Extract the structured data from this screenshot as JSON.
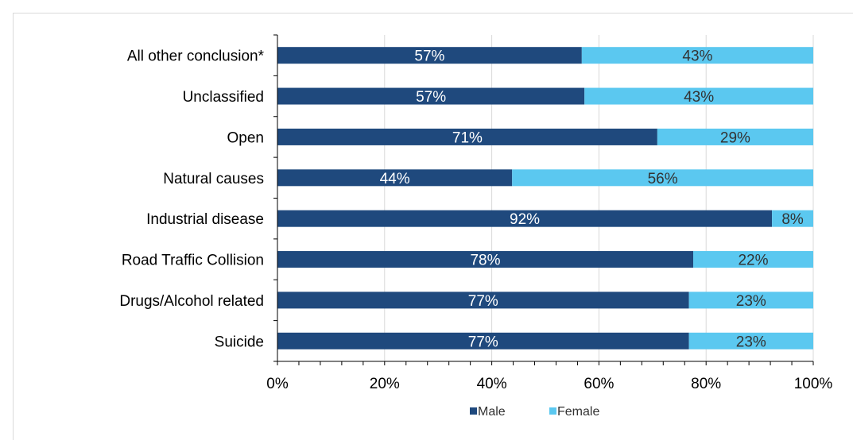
{
  "chart_data": {
    "type": "bar",
    "orientation": "horizontal",
    "stacked": true,
    "categories": [
      "All other conclusion*",
      "Unclassified",
      "Open",
      "Natural causes",
      "Industrial disease",
      "Road Traffic Collision",
      "Drugs/Alcohol related",
      "Suicide"
    ],
    "series": [
      {
        "name": "Male",
        "color": "#1f497d",
        "values": [
          56.8,
          57.3,
          70.9,
          43.8,
          92.3,
          77.6,
          76.8,
          76.8
        ],
        "labels": [
          "57%",
          "57%",
          "71%",
          "44%",
          "92%",
          "78%",
          "77%",
          "77%"
        ]
      },
      {
        "name": "Female",
        "color": "#5bc8f0",
        "values": [
          43.2,
          42.7,
          29.1,
          56.2,
          7.7,
          22.4,
          23.2,
          23.2
        ],
        "labels": [
          "43%",
          "43%",
          "29%",
          "56%",
          "8%",
          "22%",
          "23%",
          "23%"
        ]
      }
    ],
    "xlim": [
      0,
      100
    ],
    "xticks": [
      0,
      20,
      40,
      60,
      80,
      100
    ],
    "xtick_labels": [
      "0%",
      "20%",
      "40%",
      "60%",
      "80%",
      "100%"
    ],
    "grid": true,
    "legend": "bottom-center",
    "title": "",
    "xlabel": "",
    "ylabel": ""
  }
}
